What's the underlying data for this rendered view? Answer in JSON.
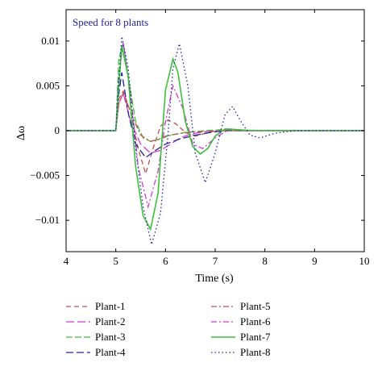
{
  "chart_data": {
    "type": "line",
    "title": "Speed for 8 plants",
    "xlabel": "Time (s)",
    "ylabel": "Δω",
    "xlim": [
      4,
      10
    ],
    "ylim": [
      -0.0135,
      0.0135
    ],
    "xticks": [
      4,
      5,
      6,
      7,
      8,
      9,
      10
    ],
    "xtick_labels": [
      "4",
      "5",
      "6",
      "7",
      "8",
      "9",
      "10"
    ],
    "yticks": [
      0.01,
      0.005,
      0,
      -0.005,
      -0.01
    ],
    "ytick_labels": [
      "0.01",
      "0.005",
      "0",
      "−0.005",
      "−0.01"
    ],
    "grid": false,
    "legend_position": "below",
    "series": [
      {
        "name": "Plant-1",
        "color": "#c0504d",
        "dash": "6,4",
        "x": [
          4,
          5,
          5.06,
          5.15,
          5.3,
          5.45,
          5.6,
          5.75,
          5.9,
          6.05,
          6.2,
          6.4,
          6.6,
          6.8,
          7.1,
          7.4,
          8,
          10
        ],
        "y": [
          0,
          0,
          0.0035,
          0.0044,
          0.002,
          -0.002,
          -0.0048,
          -0.002,
          0.0005,
          0.0012,
          0.0008,
          -0.0002,
          -0.0006,
          -0.0003,
          0.0001,
          0,
          0,
          0
        ]
      },
      {
        "name": "Plant-2",
        "color": "#d03cd0",
        "dash": "10,4",
        "x": [
          4,
          5,
          5.06,
          5.15,
          5.3,
          5.5,
          5.7,
          5.9,
          6.1,
          6.3,
          6.5,
          6.8,
          7.1,
          7.5,
          8,
          10
        ],
        "y": [
          0,
          0,
          0.003,
          0.0042,
          0.001,
          -0.0015,
          -0.0025,
          -0.0022,
          -0.0015,
          -0.0008,
          -0.0004,
          -0.0001,
          0,
          0,
          0,
          0
        ]
      },
      {
        "name": "Plant-3",
        "color": "#3cc03c",
        "dash": "8,3",
        "x": [
          4,
          5,
          5.06,
          5.15,
          5.25,
          5.4,
          5.55,
          5.7,
          5.85,
          6.0,
          6.2,
          6.4,
          6.6,
          6.8,
          7.1,
          7.4,
          8,
          10
        ],
        "y": [
          0,
          0,
          0.008,
          0.0098,
          0.006,
          0.001,
          -0.0008,
          -0.0012,
          -0.001,
          -0.0006,
          -0.0004,
          -0.0002,
          -0.0001,
          0,
          0.0001,
          0,
          0,
          0
        ]
      },
      {
        "name": "Plant-4",
        "color": "#2020a0",
        "dash": "9,4",
        "x": [
          4,
          5,
          5.06,
          5.12,
          5.25,
          5.4,
          5.6,
          5.8,
          6.0,
          6.3,
          6.6,
          6.9,
          7.2,
          7.6,
          8,
          10
        ],
        "y": [
          0,
          0,
          0.004,
          0.0065,
          0.002,
          -0.0015,
          -0.003,
          -0.0022,
          -0.0015,
          -0.0009,
          -0.0005,
          -0.0002,
          0,
          0,
          0,
          0
        ]
      },
      {
        "name": "Plant-5",
        "color": "#c0504d",
        "dash": "7,3,2,3",
        "x": [
          4,
          5,
          5.06,
          5.15,
          5.3,
          5.5,
          5.7,
          5.9,
          6.1,
          6.3,
          6.5,
          6.8,
          7.2,
          7.6,
          8,
          10
        ],
        "y": [
          0,
          0,
          0.003,
          0.0042,
          0.002,
          -0.0005,
          -0.0012,
          -0.0009,
          -0.0005,
          -0.0003,
          -0.0002,
          -0.0001,
          0,
          0,
          0,
          0
        ]
      },
      {
        "name": "Plant-6",
        "color": "#d03cd0",
        "dash": "7,3,2,3",
        "x": [
          4,
          5,
          5.06,
          5.15,
          5.3,
          5.45,
          5.65,
          5.85,
          6.0,
          6.15,
          6.35,
          6.55,
          6.75,
          7.0,
          7.3,
          7.6,
          8,
          10
        ],
        "y": [
          0,
          0,
          0.006,
          0.0098,
          0.004,
          -0.004,
          -0.0085,
          -0.0045,
          0.001,
          0.005,
          0.0025,
          -0.0015,
          -0.002,
          -0.0008,
          0.0002,
          0,
          0,
          0
        ]
      },
      {
        "name": "Plant-7",
        "color": "#3cc03c",
        "dash": "",
        "x": [
          4,
          5,
          5.05,
          5.12,
          5.25,
          5.4,
          5.55,
          5.7,
          5.85,
          6.0,
          6.15,
          6.25,
          6.4,
          6.55,
          6.7,
          6.85,
          7.0,
          7.2,
          7.5,
          7.8,
          8,
          10
        ],
        "y": [
          0,
          0,
          0.004,
          0.0095,
          0.006,
          -0.004,
          -0.0095,
          -0.011,
          -0.007,
          0.0045,
          0.008,
          0.0065,
          0.001,
          -0.0018,
          -0.0026,
          -0.002,
          -0.0006,
          0.0002,
          0.0001,
          0,
          0,
          0
        ]
      },
      {
        "name": "Plant-8",
        "color": "#2020a0",
        "dash": "1.5,3",
        "x": [
          4,
          5,
          5.05,
          5.12,
          5.25,
          5.4,
          5.55,
          5.72,
          5.9,
          6.05,
          6.15,
          6.28,
          6.45,
          6.6,
          6.8,
          7.0,
          7.2,
          7.35,
          7.5,
          7.7,
          7.9,
          8.2,
          8.6,
          10
        ],
        "y": [
          0,
          0,
          0.005,
          0.0105,
          0.007,
          -0.002,
          -0.0085,
          -0.0127,
          -0.0092,
          -0.0005,
          0.007,
          0.0097,
          0.005,
          -0.0025,
          -0.0058,
          -0.0025,
          0.0018,
          0.0027,
          0.0012,
          -0.0005,
          -0.0008,
          -0.0003,
          0,
          0
        ]
      }
    ]
  }
}
